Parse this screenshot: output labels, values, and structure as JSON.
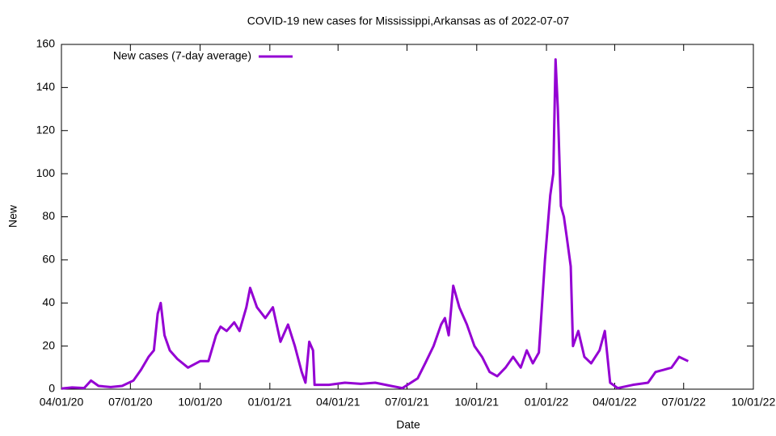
{
  "chart_data": {
    "type": "line",
    "title": "COVID-19 new cases for Mississippi,Arkansas as of 2022-07-07",
    "x_label": "Date",
    "y_label": "New",
    "x": [
      "2020-04-01",
      "2020-04-15",
      "2020-05-01",
      "2020-05-10",
      "2020-05-20",
      "2020-06-05",
      "2020-06-20",
      "2020-07-05",
      "2020-07-15",
      "2020-07-25",
      "2020-08-01",
      "2020-08-06",
      "2020-08-10",
      "2020-08-15",
      "2020-08-22",
      "2020-09-01",
      "2020-09-15",
      "2020-10-01",
      "2020-10-12",
      "2020-10-22",
      "2020-10-28",
      "2020-11-05",
      "2020-11-15",
      "2020-11-22",
      "2020-12-01",
      "2020-12-06",
      "2020-12-15",
      "2020-12-26",
      "2021-01-05",
      "2021-01-15",
      "2021-01-25",
      "2021-02-03",
      "2021-02-12",
      "2021-02-17",
      "2021-02-22",
      "2021-02-27",
      "2021-03-01",
      "2021-03-20",
      "2021-04-10",
      "2021-05-01",
      "2021-05-20",
      "2021-06-10",
      "2021-06-25",
      "2021-07-15",
      "2021-07-25",
      "2021-08-05",
      "2021-08-15",
      "2021-08-20",
      "2021-08-25",
      "2021-08-31",
      "2021-09-08",
      "2021-09-18",
      "2021-09-28",
      "2021-10-08",
      "2021-10-18",
      "2021-10-28",
      "2021-11-08",
      "2021-11-18",
      "2021-11-28",
      "2021-12-06",
      "2021-12-14",
      "2021-12-22",
      "2021-12-30",
      "2022-01-06",
      "2022-01-10",
      "2022-01-13",
      "2022-01-16",
      "2022-01-20",
      "2022-01-24",
      "2022-01-28",
      "2022-02-02",
      "2022-02-05",
      "2022-02-12",
      "2022-02-20",
      "2022-03-01",
      "2022-03-12",
      "2022-03-19",
      "2022-03-26",
      "2022-04-05",
      "2022-04-25",
      "2022-05-15",
      "2022-05-25",
      "2022-06-05",
      "2022-06-15",
      "2022-06-25",
      "2022-07-07"
    ],
    "series": [
      {
        "name": "New cases (7-day average)",
        "color": "#9400d3",
        "values": [
          0.3,
          0.8,
          0.5,
          4,
          1.5,
          1,
          1.5,
          4,
          9,
          15,
          18,
          35,
          40,
          25,
          18,
          14,
          10,
          13,
          13,
          25,
          29,
          27,
          31,
          27,
          38,
          47,
          38,
          33,
          38,
          22,
          30,
          20,
          8,
          3,
          22,
          18,
          2,
          2,
          3,
          2.5,
          3,
          1.5,
          0.5,
          5,
          12,
          20,
          30,
          33,
          25,
          48,
          38,
          30,
          20,
          15,
          8,
          6,
          10,
          15,
          10,
          18,
          12,
          17,
          60,
          90,
          100,
          153,
          130,
          85,
          80,
          70,
          57,
          20,
          27,
          15,
          12,
          18,
          27,
          3,
          0.5,
          2,
          3,
          8,
          9,
          10,
          15,
          13
        ]
      }
    ],
    "xlim": [
      "2020-04-01",
      "2022-10-01"
    ],
    "xticks": [
      {
        "value": "2020-04-01",
        "label": "04/01/20"
      },
      {
        "value": "2020-07-01",
        "label": "07/01/20"
      },
      {
        "value": "2020-10-01",
        "label": "10/01/20"
      },
      {
        "value": "2021-01-01",
        "label": "01/01/21"
      },
      {
        "value": "2021-04-01",
        "label": "04/01/21"
      },
      {
        "value": "2021-07-01",
        "label": "07/01/21"
      },
      {
        "value": "2021-10-01",
        "label": "10/01/21"
      },
      {
        "value": "2022-01-01",
        "label": "01/01/22"
      },
      {
        "value": "2022-04-01",
        "label": "04/01/22"
      },
      {
        "value": "2022-07-01",
        "label": "07/01/22"
      },
      {
        "value": "2022-10-01",
        "label": "10/01/22"
      }
    ],
    "ylim": [
      0,
      160
    ],
    "yticks": [
      0,
      20,
      40,
      60,
      80,
      100,
      120,
      140,
      160
    ],
    "legend": "top-left",
    "grid": false
  }
}
